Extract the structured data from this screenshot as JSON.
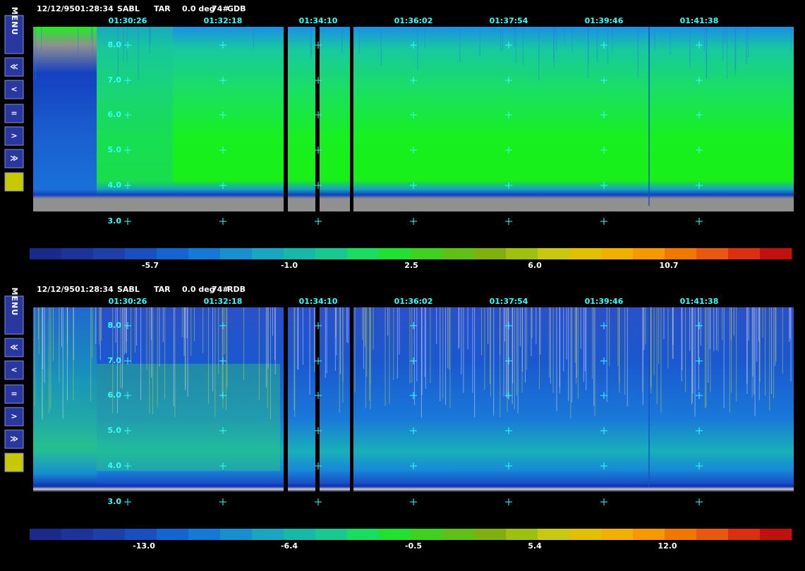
{
  "toolbar": {
    "menu": "MENU",
    "buttons": [
      "≪",
      "<",
      "=",
      ">",
      "≫"
    ]
  },
  "panels": [
    {
      "header": {
        "date": "12/12/95",
        "time": "01:28:34",
        "site": "SABL",
        "mode": "TAR",
        "angle": "0.0 deg",
        "shot": "74#",
        "product": "GDB"
      },
      "time_labels": [
        "01:30:26",
        "01:32:18",
        "01:34:10",
        "01:36:02",
        "01:37:54",
        "01:39:46",
        "01:41:38"
      ],
      "altitude_labels": [
        "8.0",
        "7.0",
        "6.0",
        "5.0",
        "4.0",
        "3.0"
      ],
      "colorbar_labels": [
        "-5.7",
        "-1.0",
        "2.5",
        "6.0",
        "10.7"
      ]
    },
    {
      "header": {
        "date": "12/12/95",
        "time": "01:28:34",
        "site": "SABL",
        "mode": "TAR",
        "angle": "0.0 deg",
        "shot": "74#",
        "product": "RDB"
      },
      "time_labels": [
        "01:30:26",
        "01:32:18",
        "01:34:10",
        "01:36:02",
        "01:37:54",
        "01:39:46",
        "01:41:38"
      ],
      "altitude_labels": [
        "8.0",
        "7.0",
        "6.0",
        "5.0",
        "4.0",
        "3.0"
      ],
      "colorbar_labels": [
        "-13.0",
        "-6.4",
        "-0.5",
        "5.4",
        "12.0"
      ]
    }
  ]
}
